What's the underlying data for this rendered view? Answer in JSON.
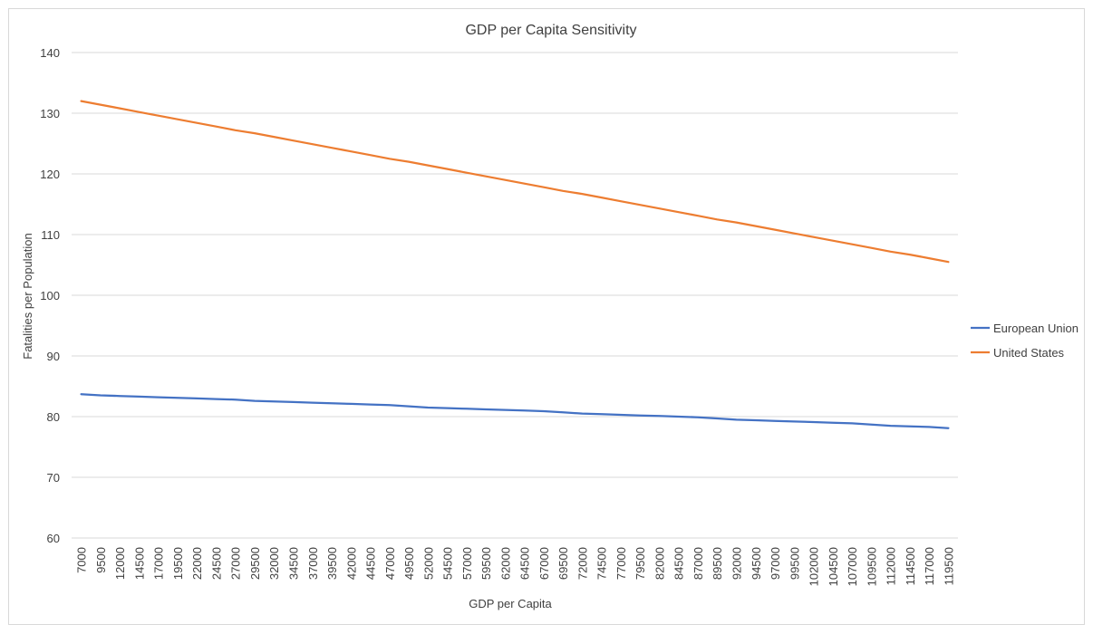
{
  "chart_data": {
    "type": "line",
    "title": "GDP per Capita Sensitivity",
    "xlabel": "GDP per Capita",
    "ylabel": "Fatalities per Population",
    "ylim": [
      60,
      140
    ],
    "yticks": [
      60,
      70,
      80,
      90,
      100,
      110,
      120,
      130,
      140
    ],
    "grid": true,
    "legend": "right",
    "categories": [
      "7000",
      "9500",
      "12000",
      "14500",
      "17000",
      "19500",
      "22000",
      "24500",
      "27000",
      "29500",
      "32000",
      "34500",
      "37000",
      "39500",
      "42000",
      "44500",
      "47000",
      "49500",
      "52000",
      "54500",
      "57000",
      "59500",
      "62000",
      "64500",
      "67000",
      "69500",
      "72000",
      "74500",
      "77000",
      "79500",
      "82000",
      "84500",
      "87000",
      "89500",
      "92000",
      "94500",
      "97000",
      "99500",
      "102000",
      "104500",
      "107000",
      "109500",
      "112000",
      "114500",
      "117000",
      "119500"
    ],
    "series": [
      {
        "name": "European Union",
        "color": "#4472c4",
        "values": [
          83.7,
          83.5,
          83.4,
          83.3,
          83.2,
          83.1,
          83.0,
          82.9,
          82.8,
          82.6,
          82.5,
          82.4,
          82.3,
          82.2,
          82.1,
          82.0,
          81.9,
          81.7,
          81.5,
          81.4,
          81.3,
          81.2,
          81.1,
          81.0,
          80.9,
          80.7,
          80.5,
          80.4,
          80.3,
          80.2,
          80.1,
          80.0,
          79.9,
          79.7,
          79.5,
          79.4,
          79.3,
          79.2,
          79.1,
          79.0,
          78.9,
          78.7,
          78.5,
          78.4,
          78.3,
          78.1
        ]
      },
      {
        "name": "United States",
        "color": "#ed7d31",
        "values": [
          132.0,
          131.4,
          130.8,
          130.2,
          129.6,
          129.0,
          128.4,
          127.8,
          127.2,
          126.7,
          126.1,
          125.5,
          124.9,
          124.3,
          123.7,
          123.1,
          122.5,
          122.0,
          121.4,
          120.8,
          120.2,
          119.6,
          119.0,
          118.4,
          117.8,
          117.2,
          116.7,
          116.1,
          115.5,
          114.9,
          114.3,
          113.7,
          113.1,
          112.5,
          112.0,
          111.4,
          110.8,
          110.2,
          109.6,
          109.0,
          108.4,
          107.8,
          107.2,
          106.7,
          106.1,
          105.5
        ]
      }
    ]
  }
}
